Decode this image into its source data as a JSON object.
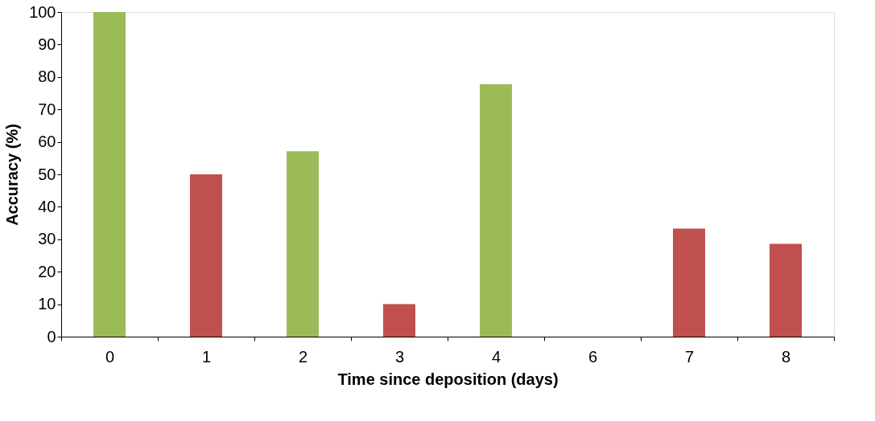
{
  "chart_data": {
    "type": "bar",
    "xlabel": "Time since deposition (days)",
    "ylabel": "Accuracy (%)",
    "categories": [
      "0",
      "1",
      "2",
      "3",
      "4",
      "6",
      "7",
      "8"
    ],
    "values": [
      100,
      50,
      57.1,
      10,
      77.8,
      0,
      33.3,
      28.6
    ],
    "colors": [
      "#9bbb59",
      "#c0504d",
      "#9bbb59",
      "#c0504d",
      "#9bbb59",
      "#c0504d",
      "#c0504d",
      "#c0504d"
    ],
    "ylim": [
      0,
      100
    ],
    "yticks": [
      0,
      10,
      20,
      30,
      40,
      50,
      60,
      70,
      80,
      90,
      100
    ],
    "grid": false,
    "legend": false
  }
}
